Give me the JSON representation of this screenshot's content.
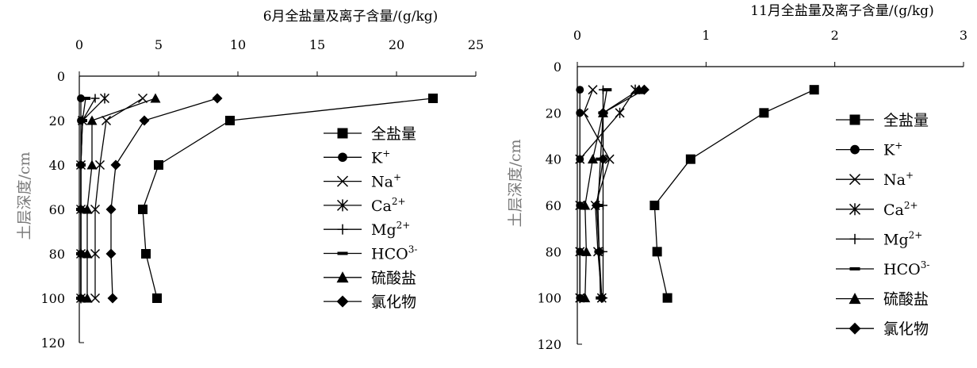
{
  "chart_data": [
    {
      "type": "line",
      "title": "6月全盐量及离子含量/(g/kg)",
      "ylabel": "土层深度/cm",
      "xlim": [
        0,
        25
      ],
      "ylim": [
        0,
        120
      ],
      "x_ticks": [
        "0",
        "5",
        "10",
        "15",
        "20",
        "25"
      ],
      "y_ticks": [
        "0",
        "20",
        "40",
        "60",
        "80",
        "100",
        "120"
      ],
      "y_inverted": true,
      "depth": [
        10,
        20,
        40,
        60,
        80,
        100
      ],
      "legend_position": "right",
      "series": [
        {
          "name": "全盐量",
          "marker": "square",
          "values": [
            22.3,
            9.5,
            5.0,
            4.0,
            4.2,
            4.9
          ]
        },
        {
          "name": "K+",
          "marker": "circle",
          "values": [
            0.1,
            0.1,
            0.1,
            0.1,
            0.1,
            0.1
          ]
        },
        {
          "name": "Na+",
          "marker": "x",
          "values": [
            4.0,
            1.7,
            1.3,
            1.0,
            1.0,
            1.0
          ]
        },
        {
          "name": "Ca2+",
          "marker": "asterisk",
          "values": [
            1.6,
            0.2,
            0.1,
            0.1,
            0.1,
            0.1
          ]
        },
        {
          "name": "Mg2+",
          "marker": "plus",
          "values": [
            1.0,
            0.2,
            0.1,
            0.1,
            0.1,
            0.1
          ]
        },
        {
          "name": "HCO3-",
          "marker": "dash",
          "values": [
            0.4,
            0.2,
            0.1,
            0.1,
            0.1,
            0.1
          ]
        },
        {
          "name": "硫酸盐",
          "marker": "triangle",
          "values": [
            4.8,
            0.8,
            0.8,
            0.5,
            0.5,
            0.5
          ]
        },
        {
          "name": "氯化物",
          "marker": "diamond",
          "values": [
            8.7,
            4.1,
            2.3,
            2.0,
            2.0,
            2.1
          ]
        }
      ]
    },
    {
      "type": "line",
      "title": "11月全盐量及离子含量/(g/kg)",
      "ylabel": "土层深度/cm",
      "xlim": [
        0,
        3
      ],
      "ylim": [
        0,
        120
      ],
      "x_ticks": [
        "0",
        "1",
        "2",
        "3"
      ],
      "y_ticks": [
        "0",
        "20",
        "40",
        "60",
        "80",
        "100",
        "120"
      ],
      "y_inverted": true,
      "depth": [
        10,
        20,
        40,
        60,
        80,
        100
      ],
      "legend_position": "right",
      "series": [
        {
          "name": "全盐量",
          "marker": "square",
          "values": [
            1.84,
            1.45,
            0.88,
            0.6,
            0.62,
            0.7
          ]
        },
        {
          "name": "K+",
          "marker": "circle",
          "values": [
            0.02,
            0.02,
            0.02,
            0.02,
            0.02,
            0.02
          ]
        },
        {
          "name": "Na+",
          "marker": "x",
          "values": [
            0.12,
            0.05,
            0.25,
            0.14,
            0.16,
            0.19
          ]
        },
        {
          "name": "Ca2+",
          "marker": "asterisk",
          "values": [
            0.45,
            0.33,
            0.02,
            0.02,
            0.02,
            0.02
          ]
        },
        {
          "name": "Mg2+",
          "marker": "plus",
          "values": [
            0.2,
            0.2,
            0.2,
            0.2,
            0.2,
            0.2
          ]
        },
        {
          "name": "HCO3-",
          "marker": "dash",
          "values": [
            0.23,
            0.2,
            0.18,
            0.16,
            0.17,
            0.18
          ]
        },
        {
          "name": "硫酸盐",
          "marker": "triangle",
          "values": [
            0.48,
            0.2,
            0.12,
            0.06,
            0.07,
            0.06
          ]
        },
        {
          "name": "氯化物",
          "marker": "diamond",
          "values": [
            0.52,
            0.2,
            0.2,
            0.15,
            0.17,
            0.19
          ]
        }
      ]
    }
  ],
  "legend": {
    "entries": [
      {
        "name": "全盐量",
        "base": "全盐量",
        "sup": ""
      },
      {
        "name": "K+",
        "base": "K",
        "sup": "+"
      },
      {
        "name": "Na+",
        "base": "Na",
        "sup": "+"
      },
      {
        "name": "Ca2+",
        "base": "Ca",
        "sup": "2+"
      },
      {
        "name": "Mg2+",
        "base": "Mg",
        "sup": "2+"
      },
      {
        "name": "HCO3-",
        "base": "HCO",
        "sup": "3-"
      },
      {
        "name": "硫酸盐",
        "base": "硫酸盐",
        "sup": ""
      },
      {
        "name": "氯化物",
        "base": "氯化物",
        "sup": ""
      }
    ]
  }
}
